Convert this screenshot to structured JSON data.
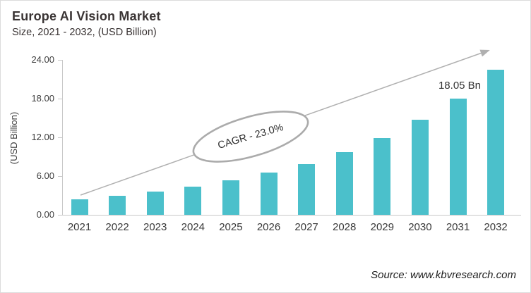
{
  "header": {
    "title": "Europe AI Vision Market",
    "subtitle": "Size, 2021 - 2032, (USD Billion)"
  },
  "chart_data": {
    "type": "bar",
    "title": "Europe AI Vision Market Size, 2021 - 2032, (USD Billion)",
    "categories": [
      "2021",
      "2022",
      "2023",
      "2024",
      "2025",
      "2026",
      "2027",
      "2028",
      "2029",
      "2030",
      "2031",
      "2032"
    ],
    "values": [
      2.4,
      2.9,
      3.6,
      4.4,
      5.4,
      6.5,
      7.9,
      9.7,
      11.9,
      14.7,
      18.05,
      22.5
    ],
    "xlabel": "",
    "ylabel": "(USD Billion)",
    "ylim": [
      0,
      24
    ],
    "yticks": [
      0,
      6,
      12,
      18,
      24
    ],
    "ytick_labels": [
      "0.00",
      "6.00",
      "12.00",
      "18.00",
      "24.00"
    ],
    "grid": false,
    "legend": false,
    "bar_color": "#4BC0CB",
    "annotations": {
      "cagr_label": "CAGR - 23.0%",
      "value_label": "18.05 Bn",
      "value_label_category": "2031"
    }
  },
  "footer": {
    "source": "Source: www.kbvresearch.com"
  },
  "colors": {
    "bar": "#4BC0CB",
    "axis": "#C8C8C8",
    "arrow": "#B0B0B0",
    "ellipse_stroke": "#ABABAB",
    "title_text": "#3A3434",
    "frame_border": "#DCDCDC"
  }
}
